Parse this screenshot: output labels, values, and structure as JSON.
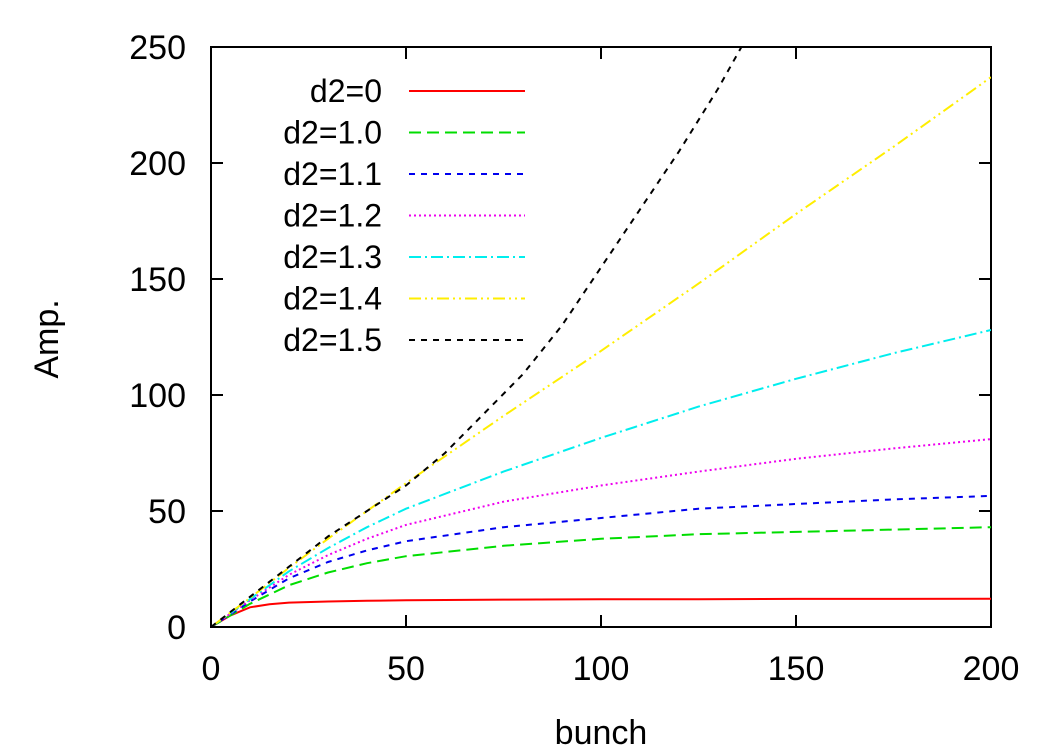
{
  "chart_data": {
    "type": "line",
    "title": "",
    "xlabel": "bunch",
    "ylabel": "Amp.",
    "xlim": [
      0,
      200
    ],
    "ylim": [
      0,
      250
    ],
    "xticks": [
      0,
      50,
      100,
      150,
      200
    ],
    "yticks": [
      0,
      50,
      100,
      150,
      200,
      250
    ],
    "grid": false,
    "legend_position": "top-left",
    "series": [
      {
        "name": "d2=0",
        "color": "#ff0000",
        "dash": "solid",
        "x": [
          0,
          5,
          10,
          15,
          20,
          30,
          40,
          50,
          75,
          100,
          125,
          150,
          175,
          200
        ],
        "y": [
          0,
          5,
          8.5,
          9.8,
          10.5,
          11,
          11.3,
          11.5,
          11.8,
          12,
          12,
          12.1,
          12.1,
          12.2
        ]
      },
      {
        "name": "d2=1.0",
        "color": "#00dd00",
        "dash": "long-dash",
        "x": [
          0,
          10,
          20,
          30,
          40,
          50,
          75,
          100,
          125,
          150,
          175,
          200
        ],
        "y": [
          0,
          10,
          18,
          23.5,
          27.5,
          30.5,
          35,
          38,
          40,
          41,
          42,
          43
        ]
      },
      {
        "name": "d2=1.1",
        "color": "#0000ee",
        "dash": "short-dash",
        "x": [
          0,
          10,
          20,
          30,
          40,
          50,
          75,
          100,
          125,
          150,
          175,
          200
        ],
        "y": [
          0,
          11,
          21,
          28,
          33,
          37,
          43,
          47,
          51,
          53,
          55,
          56.5
        ]
      },
      {
        "name": "d2=1.2",
        "color": "#ee00ee",
        "dash": "dotted",
        "x": [
          0,
          10,
          20,
          30,
          40,
          50,
          75,
          100,
          125,
          150,
          175,
          200
        ],
        "y": [
          0,
          11.5,
          22.5,
          31,
          38,
          44,
          54,
          61,
          67,
          72.5,
          77,
          81
        ]
      },
      {
        "name": "d2=1.3",
        "color": "#00eeee",
        "dash": "dash-dot",
        "x": [
          0,
          10,
          20,
          30,
          40,
          50,
          75,
          100,
          125,
          150,
          175,
          200
        ],
        "y": [
          0,
          12,
          24,
          34,
          43,
          51,
          67,
          81.5,
          95,
          107,
          118,
          128
        ]
      },
      {
        "name": "d2=1.4",
        "color": "#ffee00",
        "dash": "dash-dot-dot",
        "x": [
          0,
          10,
          20,
          30,
          40,
          50,
          75,
          100,
          125,
          150,
          175,
          200
        ],
        "y": [
          0,
          12.5,
          25.5,
          38,
          50,
          62,
          91,
          119,
          148,
          178,
          207,
          237
        ]
      },
      {
        "name": "d2=1.5",
        "color": "#000000",
        "dash": "short-dash",
        "x": [
          0,
          10,
          20,
          30,
          40,
          50,
          60,
          70,
          80,
          90,
          100,
          110,
          120,
          130,
          136
        ],
        "y": [
          0,
          13,
          26,
          39,
          50,
          61,
          75,
          92,
          109,
          130,
          155,
          180,
          205,
          232,
          250
        ]
      }
    ]
  }
}
